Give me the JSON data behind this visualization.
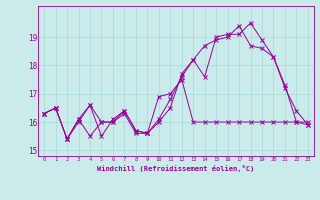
{
  "title": "",
  "xlabel": "Windchill (Refroidissement éolien,°C)",
  "ylabel": "",
  "background_color": "#cbeaea",
  "line_color": "#990099",
  "grid_color": "#a8d8d8",
  "xlim": [
    -0.5,
    23.5
  ],
  "ylim": [
    14.8,
    20.1
  ],
  "xticks": [
    0,
    1,
    2,
    3,
    4,
    5,
    6,
    7,
    8,
    9,
    10,
    11,
    12,
    13,
    14,
    15,
    16,
    17,
    18,
    19,
    20,
    21,
    22,
    23
  ],
  "yticks": [
    15,
    16,
    17,
    18,
    19
  ],
  "series": [
    [
      16.3,
      16.5,
      15.4,
      16.1,
      16.6,
      15.5,
      16.1,
      16.4,
      15.7,
      15.6,
      16.0,
      16.5,
      17.7,
      18.2,
      17.6,
      19.0,
      19.1,
      19.1,
      19.5,
      18.9,
      18.3,
      17.3,
      16.0,
      15.9
    ],
    [
      16.3,
      16.5,
      15.4,
      16.1,
      15.5,
      16.0,
      16.0,
      16.4,
      15.7,
      15.6,
      16.9,
      17.0,
      17.5,
      16.0,
      16.0,
      16.0,
      16.0,
      16.0,
      16.0,
      16.0,
      16.0,
      16.0,
      16.0,
      16.0
    ],
    [
      16.3,
      16.5,
      15.4,
      16.0,
      16.6,
      16.0,
      16.0,
      16.3,
      15.6,
      15.6,
      16.1,
      16.8,
      17.6,
      18.2,
      18.7,
      18.9,
      19.0,
      19.4,
      18.7,
      18.6,
      18.3,
      17.2,
      16.4,
      15.9
    ]
  ]
}
